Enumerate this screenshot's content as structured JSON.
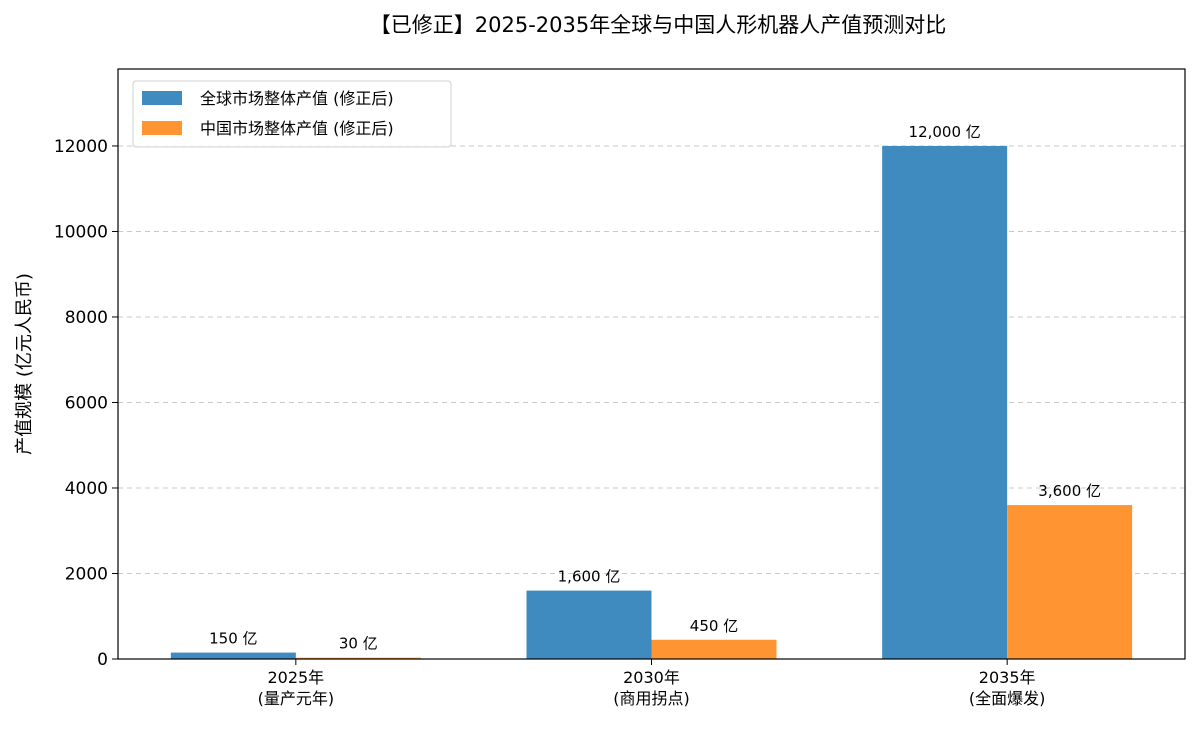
{
  "chart_data": {
    "type": "bar",
    "title": "【已修正】2025-2035年全球与中国人形机器人产值预测对比",
    "xlabel": "",
    "ylabel": "产值规模 (亿元人民币)",
    "categories": [
      [
        "2025年",
        "(量产元年)"
      ],
      [
        "2030年",
        "(商用拐点)"
      ],
      [
        "2035年",
        "(全面爆发)"
      ]
    ],
    "series": [
      {
        "name": "全球市场整体产值 (修正后)",
        "values": [
          150,
          1600,
          12000
        ],
        "labels": [
          "150 亿",
          "1,600 亿",
          "12,000 亿"
        ],
        "color": "#3f8bc0"
      },
      {
        "name": "中国市场整体产值 (修正后)",
        "values": [
          30,
          450,
          3600
        ],
        "labels": [
          "30 亿",
          "450 亿",
          "3,600 亿"
        ],
        "color": "#ff9433"
      }
    ],
    "ylim": [
      0,
      13800
    ],
    "yticks": [
      0,
      2000,
      4000,
      6000,
      8000,
      10000,
      12000
    ],
    "ytick_labels": [
      "0",
      "2000",
      "4000",
      "6000",
      "8000",
      "10000",
      "12000"
    ],
    "grid": "y-dashed",
    "legend": "top-left"
  }
}
